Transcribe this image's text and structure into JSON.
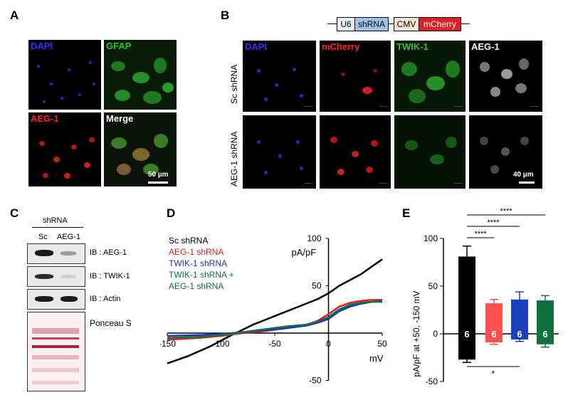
{
  "panels": {
    "A": {
      "label": "A",
      "images": [
        {
          "channel": "DAPI",
          "color": "#3030ff"
        },
        {
          "channel": "GFAP",
          "color": "#30c030"
        },
        {
          "channel": "AEG-1",
          "color": "#ff2020"
        },
        {
          "channel": "Merge",
          "color": "#ffffff"
        }
      ],
      "scalebar": "50 µm"
    },
    "B": {
      "label": "B",
      "construct": {
        "u6": "U6",
        "shrna": "shRNA",
        "cmv": "CMV",
        "mcherry": "mCherry"
      },
      "rows": [
        "Sc shRNA",
        "AEG-1 shRNA"
      ],
      "columns": [
        {
          "channel": "DAPI",
          "color": "#3030ff"
        },
        {
          "channel": "mCherry",
          "color": "#ff2020"
        },
        {
          "channel": "TWIK-1",
          "color": "#30c030"
        },
        {
          "channel": "AEG-1",
          "color": "#ffffff"
        }
      ],
      "scalebar": "40 µm"
    },
    "C": {
      "label": "C",
      "header": "shRNA",
      "lanes": [
        "Sc",
        "AEG-1"
      ],
      "blots": [
        "IB : AEG-1",
        "IB : TWIK-1",
        "IB : Actin"
      ],
      "stain": "Ponceau S"
    },
    "D": {
      "label": "D"
    },
    "E": {
      "label": "E"
    }
  },
  "chart_data": [
    {
      "type": "line",
      "ylabel": "pA/pF",
      "xlabel": "mV",
      "xlim": [
        -150,
        50
      ],
      "ylim": [
        -50,
        100
      ],
      "xticks": [
        "-150",
        "-100",
        "-50",
        "0",
        "50"
      ],
      "yticks": [
        "-50",
        "50",
        "100"
      ],
      "legend_placement": "top-left",
      "series": [
        {
          "name": "Sc shRNA",
          "color": "#000000",
          "x": [
            -150,
            -130,
            -110,
            -100,
            -90,
            -70,
            -50,
            -30,
            -10,
            0,
            10,
            30,
            50
          ],
          "y": [
            -32,
            -24,
            -14,
            -8,
            -2,
            9,
            18,
            27,
            36,
            42,
            50,
            62,
            78
          ]
        },
        {
          "name": "AEG-1 shRNA",
          "color": "#e02020",
          "x": [
            -150,
            -120,
            -100,
            -80,
            -60,
            -40,
            -20,
            -10,
            0,
            10,
            20,
            30,
            40,
            50
          ],
          "y": [
            -7,
            -5,
            -3,
            0,
            2,
            5,
            9,
            13,
            20,
            28,
            32,
            34,
            35,
            35
          ]
        },
        {
          "name": "TWIK-1 shRNA",
          "color": "#2030c0",
          "x": [
            -150,
            -120,
            -100,
            -80,
            -60,
            -40,
            -20,
            -10,
            0,
            10,
            20,
            30,
            40,
            50
          ],
          "y": [
            -3,
            -2,
            -1,
            1,
            3,
            5,
            8,
            11,
            15,
            23,
            28,
            31,
            33,
            34
          ]
        },
        {
          "name": "TWIK-1 shRNA + AEG-1 shRNA",
          "color": "#107040",
          "x": [
            -150,
            -120,
            -100,
            -80,
            -60,
            -40,
            -20,
            -10,
            0,
            10,
            20,
            30,
            40,
            50
          ],
          "y": [
            -5,
            -4,
            -2,
            1,
            4,
            7,
            9,
            12,
            17,
            25,
            30,
            32,
            33,
            33
          ]
        }
      ]
    },
    {
      "type": "bar",
      "ylabel": "pA/pF at +50, -150 mV",
      "ylim": [
        -50,
        100
      ],
      "yticks": [
        "-50",
        "0",
        "50",
        "100"
      ],
      "categories": [
        "Sc shRNA",
        "AEG-1 shRNA",
        "TWIK-1 shRNA",
        "TWIK-1 shRNA + AEG-1 shRNA"
      ],
      "colors": [
        "#000000",
        "#ff5050",
        "#1a40c0",
        "#107040"
      ],
      "series": [
        {
          "name": "+50 mV",
          "values": [
            81,
            32,
            36,
            35
          ],
          "errors": [
            11,
            4,
            8,
            5
          ]
        },
        {
          "name": "-150 mV",
          "values": [
            -27,
            -9,
            -6,
            -11
          ],
          "errors": [
            3,
            2,
            2,
            3
          ]
        }
      ],
      "n_labels": [
        "6",
        "6",
        "6",
        "6"
      ],
      "significance": [
        {
          "from": 0,
          "to": 1,
          "label": "****"
        },
        {
          "from": 0,
          "to": 2,
          "label": "****"
        },
        {
          "from": 0,
          "to": 3,
          "label": "****"
        },
        {
          "from": 0,
          "to": 2,
          "label": "*"
        }
      ]
    }
  ]
}
